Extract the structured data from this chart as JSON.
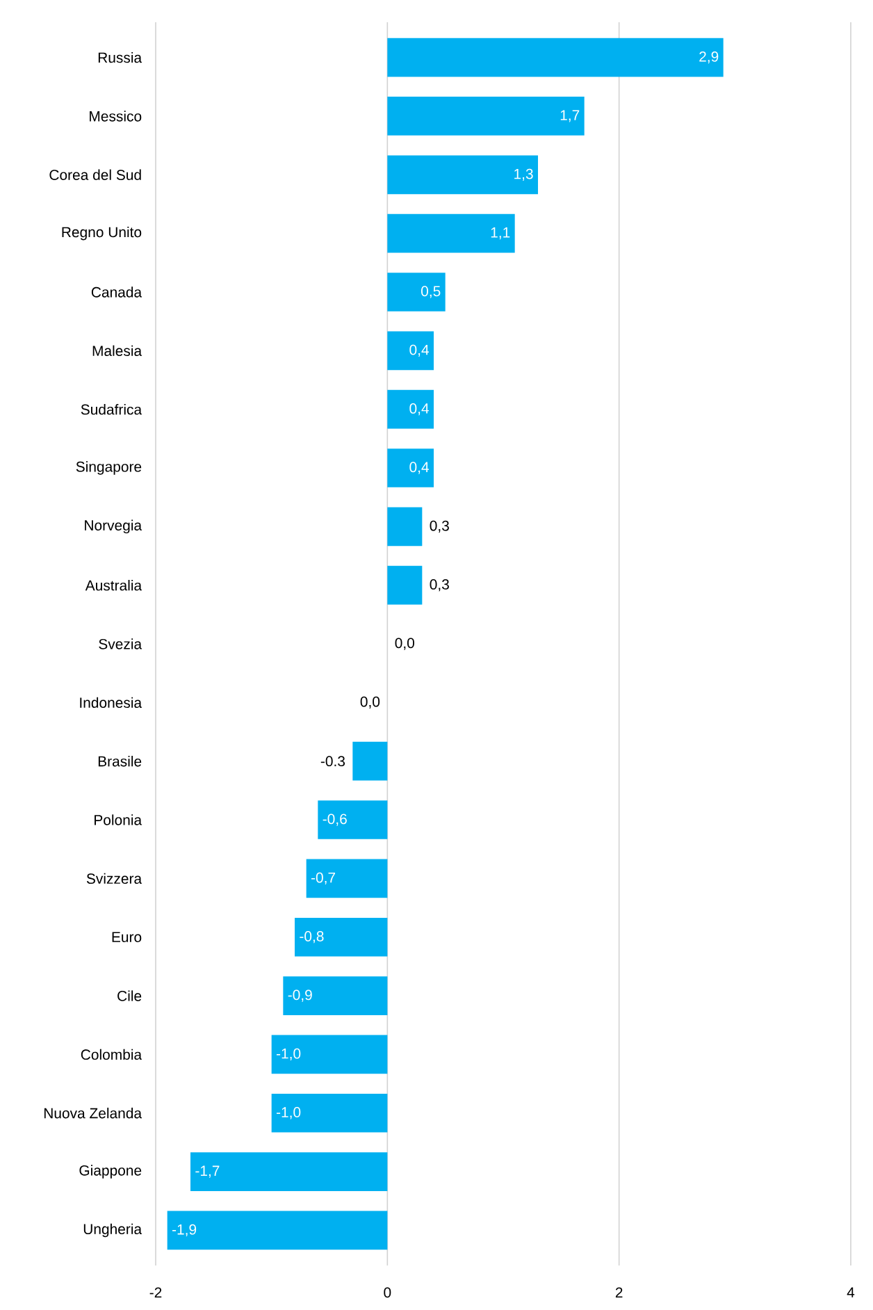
{
  "chart_data": {
    "type": "bar",
    "orientation": "horizontal",
    "categories": [
      "Russia",
      "Messico",
      "Corea del Sud",
      "Regno Unito",
      "Canada",
      "Malesia",
      "Sudafrica",
      "Singapore",
      "Norvegia",
      "Australia",
      "Svezia",
      "Indonesia",
      "Brasile",
      "Polonia",
      "Svizzera",
      "Euro",
      "Cile",
      "Colombia",
      "Nuova Zelanda",
      "Giappone",
      "Ungheria"
    ],
    "values": [
      2.9,
      1.7,
      1.3,
      1.1,
      0.5,
      0.4,
      0.4,
      0.4,
      0.3,
      0.3,
      0.0,
      -0.0,
      -0.3,
      -0.6,
      -0.7,
      -0.8,
      -0.9,
      -1.0,
      -1.0,
      -1.7,
      -1.9
    ],
    "value_labels": [
      "2,9",
      "1,7",
      "1,3",
      "1,1",
      "0,5",
      "0,4",
      "0,4",
      "0,4",
      "0,3",
      "0,3",
      "0,0",
      "0,0",
      "-0.3",
      "-0,6",
      "-0,7",
      "-0,8",
      "-0,9",
      "-1,0",
      "-1,0",
      "-1,7",
      "-1,9"
    ],
    "color": "#00b0f0",
    "xlim": [
      -2,
      4
    ],
    "xticks": [
      -2,
      0,
      2,
      4
    ],
    "grid": "x"
  }
}
